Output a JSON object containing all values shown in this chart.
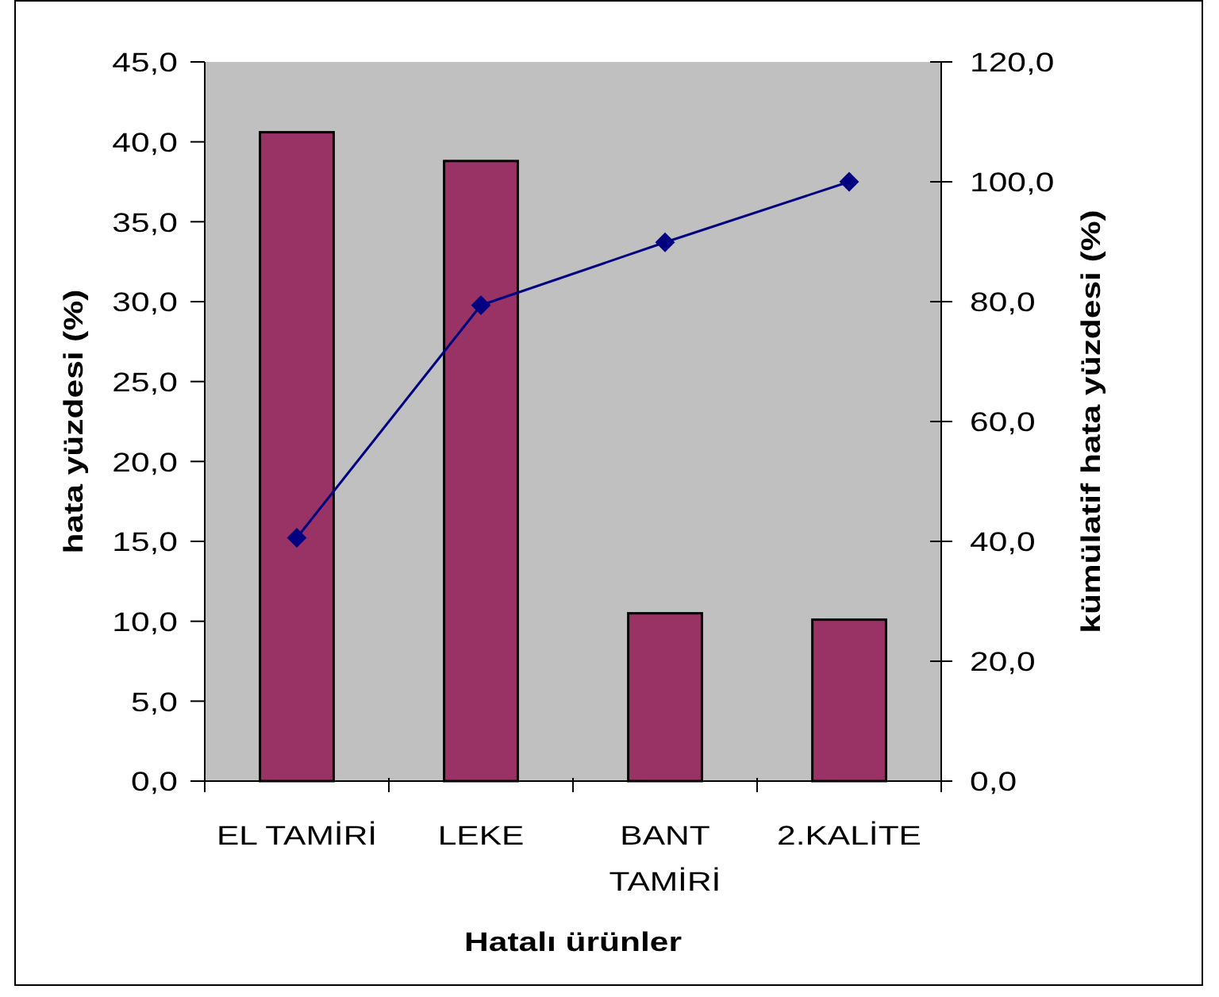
{
  "chart_data": {
    "type": "bar",
    "categories": [
      "EL TAMİRİ",
      "LEKE",
      "BANT TAMİRİ",
      "2.KALİTE"
    ],
    "xlabel": "Hatalı ürünler",
    "ylabel": "hata yüzdesi (%)",
    "y2label": "kümülatif hata yüzdesi (%)",
    "ylim": [
      0,
      45
    ],
    "yticks": [
      {
        "value": 0,
        "label": "0,0"
      },
      {
        "value": 5,
        "label": "5,0"
      },
      {
        "value": 10,
        "label": "10,0"
      },
      {
        "value": 15,
        "label": "15,0"
      },
      {
        "value": 20,
        "label": "20,0"
      },
      {
        "value": 25,
        "label": "25,0"
      },
      {
        "value": 30,
        "label": "30,0"
      },
      {
        "value": 35,
        "label": "35,0"
      },
      {
        "value": 40,
        "label": "40,0"
      },
      {
        "value": 45,
        "label": "45,0"
      }
    ],
    "y2lim": [
      0,
      120
    ],
    "y2ticks": [
      {
        "value": 0,
        "label": "0,0"
      },
      {
        "value": 20,
        "label": "20,0"
      },
      {
        "value": 40,
        "label": "40,0"
      },
      {
        "value": 60,
        "label": "60,0"
      },
      {
        "value": 80,
        "label": "80,0"
      },
      {
        "value": 100,
        "label": "100,0"
      },
      {
        "value": 120,
        "label": "120,0"
      }
    ],
    "marker": "diamond",
    "series": [
      {
        "color": "#993366",
        "values": [
          40.6,
          38.8,
          10.5,
          10.1
        ]
      },
      {
        "type": "line",
        "axis": "y2",
        "color": "#000080",
        "values": [
          40.6,
          79.4,
          89.9,
          100.0
        ]
      }
    ]
  }
}
